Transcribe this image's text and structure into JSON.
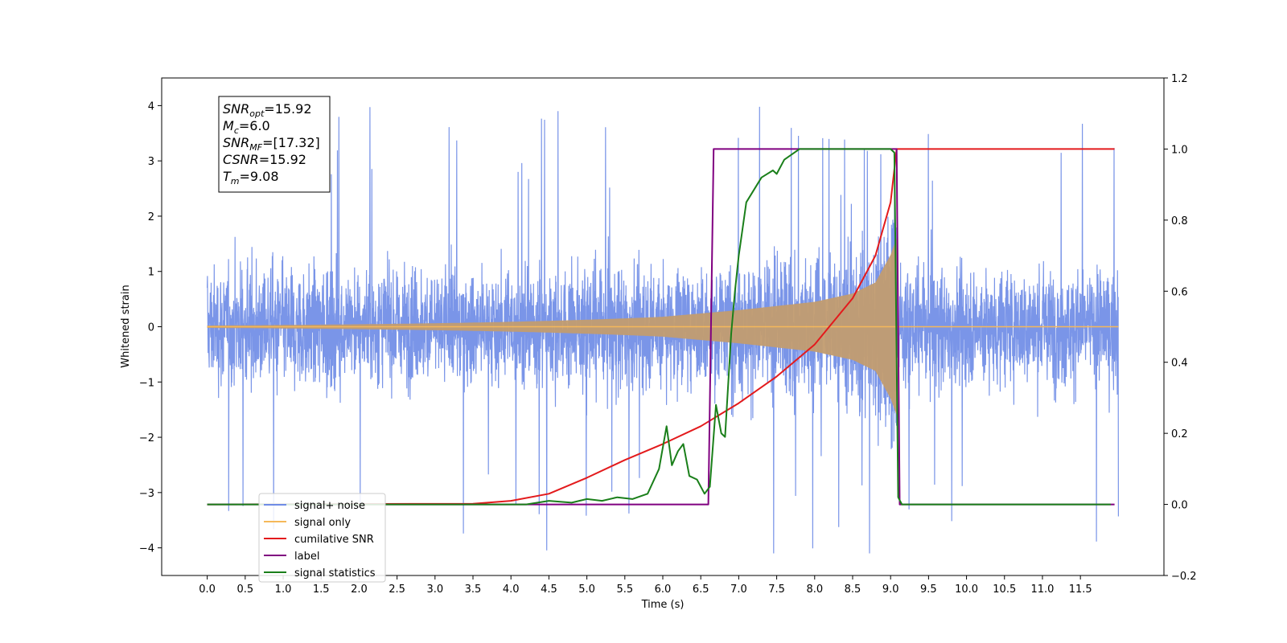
{
  "chart_data": {
    "type": "line",
    "xlabel": "Time (s)",
    "ylabel_left": "Whitened strain",
    "ylabel_right": "",
    "xlim": [
      -0.6,
      12.6
    ],
    "ylim_left": [
      -4.5,
      4.5
    ],
    "ylim_right": [
      -0.2,
      1.2
    ],
    "x_ticks": [
      "0.0",
      "0.5",
      "1.0",
      "1.5",
      "2.0",
      "2.5",
      "3.0",
      "3.5",
      "4.0",
      "4.5",
      "5.0",
      "5.5",
      "6.0",
      "6.5",
      "7.0",
      "7.5",
      "8.0",
      "8.5",
      "9.0",
      "9.5",
      "10.0",
      "10.5",
      "11.0",
      "11.5"
    ],
    "y_ticks_left": [
      "4",
      "3",
      "2",
      "1",
      "0",
      "−1",
      "−2",
      "−3",
      "−4"
    ],
    "y_ticks_right": [
      "1.2",
      "1.0",
      "0.8",
      "0.6",
      "0.4",
      "0.2",
      "0.0",
      "−0.2"
    ],
    "grid": false,
    "legend_position": "lower-left",
    "annotation": [
      {
        "base": "SNR",
        "sub": "opt",
        "rest": "=15.92"
      },
      {
        "base": "M",
        "sub": "c",
        "rest": "=6.0"
      },
      {
        "base": "SNR",
        "sub": "MF",
        "rest": "=[17.32]"
      },
      {
        "base": "CSNR",
        "sub": "",
        "rest": "=15.92"
      },
      {
        "base": "T",
        "sub": "m",
        "rest": "=9.08"
      }
    ],
    "series": [
      {
        "name": "signal+ noise",
        "axis": "left",
        "color": "#6f8ce6",
        "kind": "noise",
        "x_range": [
          0.0,
          12.0
        ],
        "amplitude_typical": 1.6,
        "amplitude_peak": 4.1
      },
      {
        "name": "signal only",
        "axis": "left",
        "color": "#f5b85a",
        "kind": "chirp",
        "x_range": [
          0.0,
          9.08
        ],
        "merger_time": 9.08,
        "envelope": [
          [
            6.0,
            0.18
          ],
          [
            7.0,
            0.3
          ],
          [
            8.0,
            0.45
          ],
          [
            8.5,
            0.6
          ],
          [
            8.8,
            0.8
          ],
          [
            9.0,
            1.3
          ],
          [
            9.08,
            1.6
          ]
        ]
      },
      {
        "name": "cumilative SNR",
        "axis": "right",
        "color": "#e31a1c",
        "x": [
          0.0,
          3.5,
          4.0,
          4.5,
          5.0,
          5.5,
          6.0,
          6.5,
          7.0,
          7.5,
          8.0,
          8.5,
          8.8,
          9.0,
          9.08,
          11.95
        ],
        "y": [
          0.0,
          0.002,
          0.01,
          0.03,
          0.075,
          0.125,
          0.17,
          0.22,
          0.285,
          0.36,
          0.45,
          0.58,
          0.7,
          0.85,
          1.0,
          1.0
        ]
      },
      {
        "name": "label",
        "axis": "right",
        "color": "#800080",
        "x": [
          0.0,
          6.6,
          6.67,
          9.08,
          9.12,
          11.95
        ],
        "y": [
          0.0,
          0.0,
          1.0,
          1.0,
          0.0,
          0.0
        ]
      },
      {
        "name": "signal statistics",
        "axis": "right",
        "color": "#1a7f1a",
        "x": [
          0.0,
          4.2,
          4.5,
          4.8,
          5.0,
          5.2,
          5.4,
          5.6,
          5.8,
          5.95,
          6.05,
          6.12,
          6.2,
          6.27,
          6.35,
          6.45,
          6.55,
          6.62,
          6.7,
          6.77,
          6.82,
          6.9,
          6.95,
          7.0,
          7.1,
          7.3,
          7.45,
          7.5,
          7.6,
          7.8,
          8.0,
          9.0,
          9.05,
          9.1,
          9.15,
          11.9
        ],
        "y": [
          0.0,
          0.0,
          0.01,
          0.005,
          0.015,
          0.01,
          0.02,
          0.015,
          0.03,
          0.1,
          0.22,
          0.11,
          0.15,
          0.17,
          0.08,
          0.07,
          0.03,
          0.05,
          0.28,
          0.2,
          0.19,
          0.48,
          0.6,
          0.7,
          0.85,
          0.92,
          0.94,
          0.93,
          0.97,
          1.0,
          1.0,
          1.0,
          0.99,
          0.02,
          0.0,
          0.0
        ]
      }
    ],
    "legend": [
      "signal+ noise",
      "signal only",
      "cumilative SNR",
      "label",
      "signal statistics"
    ]
  }
}
